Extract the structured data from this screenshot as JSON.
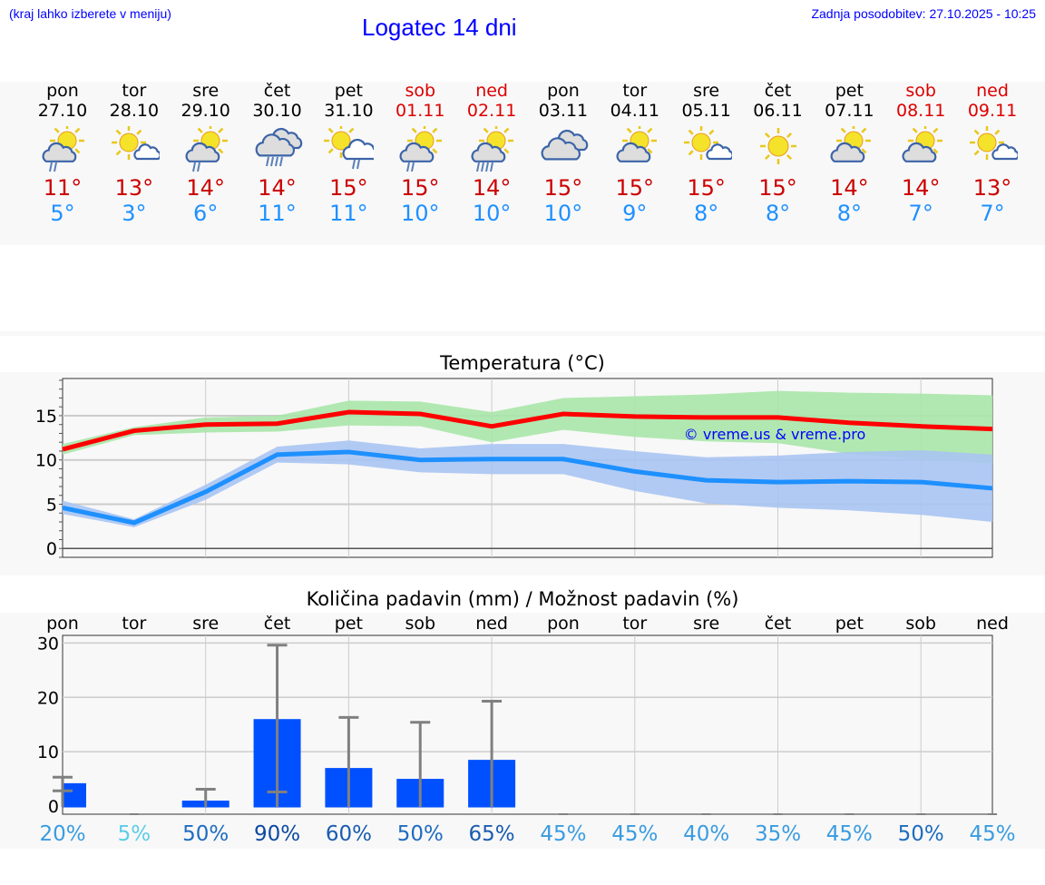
{
  "header": {
    "hint": "(kraj lahko izberete v meniju)",
    "title": "Logatec 14 dni",
    "updated": "Zadnja posodobitev: 27.10.2025 - 10:25"
  },
  "days": [
    {
      "name": "pon",
      "date": "27.10",
      "weekend": false,
      "icon": "sun-cloud-rain",
      "tmax": "11°",
      "tmin": "5°"
    },
    {
      "name": "tor",
      "date": "28.10",
      "weekend": false,
      "icon": "sun-small-cloud",
      "tmax": "13°",
      "tmin": "3°"
    },
    {
      "name": "sre",
      "date": "29.10",
      "weekend": false,
      "icon": "sun-cloud-rain",
      "tmax": "14°",
      "tmin": "6°"
    },
    {
      "name": "čet",
      "date": "30.10",
      "weekend": false,
      "icon": "cloud-heavy-rain",
      "tmax": "14°",
      "tmin": "11°"
    },
    {
      "name": "pet",
      "date": "31.10",
      "weekend": false,
      "icon": "sun-cloud-light-rain",
      "tmax": "15°",
      "tmin": "11°"
    },
    {
      "name": "sob",
      "date": "01.11",
      "weekend": true,
      "icon": "sun-cloud-rain",
      "tmax": "15°",
      "tmin": "10°"
    },
    {
      "name": "ned",
      "date": "02.11",
      "weekend": true,
      "icon": "sun-cloud-heavy-rain",
      "tmax": "14°",
      "tmin": "10°"
    },
    {
      "name": "pon",
      "date": "03.11",
      "weekend": false,
      "icon": "cloudy",
      "tmax": "15°",
      "tmin": "10°"
    },
    {
      "name": "tor",
      "date": "04.11",
      "weekend": false,
      "icon": "sun-cloud",
      "tmax": "15°",
      "tmin": "9°"
    },
    {
      "name": "sre",
      "date": "05.11",
      "weekend": false,
      "icon": "sun-small-cloud",
      "tmax": "15°",
      "tmin": "8°"
    },
    {
      "name": "čet",
      "date": "06.11",
      "weekend": false,
      "icon": "sun",
      "tmax": "15°",
      "tmin": "8°"
    },
    {
      "name": "pet",
      "date": "07.11",
      "weekend": false,
      "icon": "sun-cloud",
      "tmax": "14°",
      "tmin": "8°"
    },
    {
      "name": "sob",
      "date": "08.11",
      "weekend": true,
      "icon": "sun-cloud",
      "tmax": "14°",
      "tmin": "7°"
    },
    {
      "name": "ned",
      "date": "09.11",
      "weekend": true,
      "icon": "sun-small-cloud",
      "tmax": "13°",
      "tmin": "7°"
    }
  ],
  "chart_data": [
    {
      "type": "line",
      "title": "Temperatura (°C)",
      "ylim": [
        -1,
        19.2
      ],
      "yticks": [
        0,
        5,
        10,
        15
      ],
      "watermark": "© vreme.us & vreme.pro",
      "series": [
        {
          "name": "max",
          "color": "#ff0000",
          "values": [
            11.2,
            13.3,
            14,
            14.1,
            15.4,
            15.2,
            13.8,
            15.2,
            14.9,
            14.8,
            14.8,
            14.2,
            13.8,
            13.5
          ],
          "band_high": [
            11.8,
            13.7,
            14.8,
            15,
            16.7,
            16.6,
            15.4,
            17,
            17.2,
            17.4,
            17.8,
            17.6,
            17.5,
            17.3
          ],
          "band_low": [
            10.6,
            12.8,
            13.1,
            13.2,
            13.9,
            13.8,
            12,
            13.4,
            12.6,
            12.1,
            11.9,
            10.7,
            10.1,
            9.6
          ],
          "band_color": "#a8e6a8"
        },
        {
          "name": "min",
          "color": "#1e90ff",
          "values": [
            4.6,
            2.9,
            6.4,
            10.6,
            10.9,
            10,
            10.1,
            10.1,
            8.7,
            7.7,
            7.5,
            7.6,
            7.5,
            6.8
          ],
          "band_high": [
            5.4,
            3.3,
            7.2,
            11.5,
            12.2,
            11.3,
            11.8,
            11.8,
            11,
            10.3,
            10.5,
            10.9,
            11.1,
            10.6
          ],
          "band_low": [
            3.9,
            2.4,
            5.5,
            9.7,
            9.5,
            8.6,
            8.4,
            8.4,
            6.5,
            5.1,
            4.6,
            4.3,
            3.8,
            3.0
          ],
          "band_color": "#a9c4f2"
        }
      ]
    },
    {
      "type": "bar",
      "title": "Količina padavin (mm) / Možnost padavin (%)",
      "ylim": [
        -1.5,
        31.4
      ],
      "yticks": [
        0,
        10,
        20,
        30
      ],
      "categories": [
        "pon",
        "tor",
        "sre",
        "čet",
        "pet",
        "sob",
        "ned",
        "pon",
        "tor",
        "sre",
        "čet",
        "pet",
        "sob",
        "ned"
      ],
      "values": [
        4.2,
        0,
        1,
        16,
        7,
        5,
        8.5,
        0,
        0,
        0,
        0,
        0,
        0,
        0
      ],
      "err_low": [
        2.8,
        0,
        0,
        2.6,
        0,
        0,
        0,
        0,
        0,
        0,
        0,
        0,
        0,
        0
      ],
      "err_high": [
        5.3,
        0,
        3.1,
        29.6,
        16.3,
        15.4,
        19.3,
        0,
        0,
        0,
        0,
        0,
        0,
        0
      ],
      "probability": [
        "20%",
        "5%",
        "50%",
        "90%",
        "60%",
        "50%",
        "65%",
        "45%",
        "45%",
        "40%",
        "35%",
        "45%",
        "50%",
        "45%"
      ],
      "probability_values": [
        20,
        5,
        50,
        90,
        60,
        50,
        65,
        45,
        45,
        40,
        35,
        45,
        50,
        45
      ],
      "bar_color": "#0050ff"
    }
  ]
}
